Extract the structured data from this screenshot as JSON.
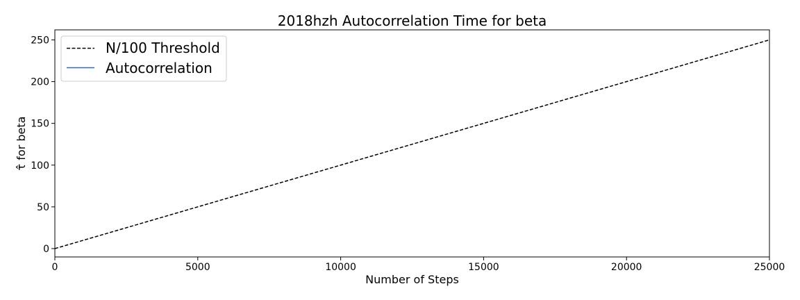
{
  "chart_data": {
    "type": "line",
    "title": "2018hzh Autocorrelation Time for beta",
    "xlabel": "Number of Steps",
    "ylabel": "τ̂ for beta",
    "xlim": [
      0,
      25000
    ],
    "ylim": [
      -10,
      262
    ],
    "x_ticks": [
      0,
      5000,
      10000,
      15000,
      20000,
      25000
    ],
    "y_ticks": [
      0,
      50,
      100,
      150,
      200,
      250
    ],
    "x_tick_labels": [
      "0",
      "5000",
      "10000",
      "15000",
      "20000",
      "25000"
    ],
    "y_tick_labels": [
      "0",
      "50",
      "100",
      "150",
      "200",
      "250"
    ],
    "grid": false,
    "legend_position": "upper-left",
    "series": [
      {
        "name": "N/100 Threshold",
        "style": "dashed",
        "color": "#000000",
        "x": [
          0,
          25000
        ],
        "y": [
          0,
          250
        ]
      },
      {
        "name": "Autocorrelation",
        "style": "solid",
        "color": "#1f77b4",
        "x": [],
        "y": []
      }
    ]
  }
}
